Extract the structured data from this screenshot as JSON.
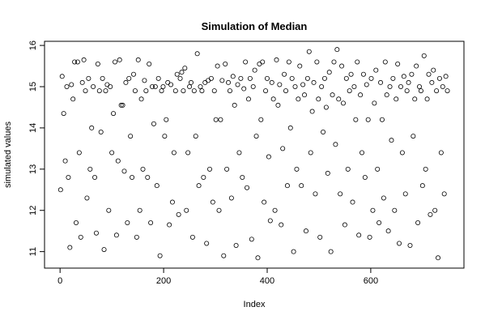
{
  "chart_data": {
    "type": "scatter",
    "title": "Simulation of Median",
    "x_label": "Index",
    "y_label": "simulated values",
    "color": "#000000",
    "xlim": [
      -30,
      780
    ],
    "xticks": [
      0,
      200,
      400,
      600
    ],
    "ylim": [
      10.6,
      16.1
    ],
    "yticks": [
      11,
      12,
      13,
      14,
      15,
      16
    ],
    "x": [
      1,
      4,
      7,
      10,
      13,
      16,
      19,
      22,
      25,
      28,
      31,
      34,
      37,
      40,
      43,
      46,
      49,
      52,
      55,
      58,
      61,
      64,
      67,
      70,
      73,
      76,
      79,
      82,
      85,
      88,
      91,
      94,
      97,
      100,
      103,
      106,
      109,
      112,
      115,
      118,
      121,
      124,
      127,
      130,
      133,
      136,
      139,
      142,
      145,
      148,
      151,
      154,
      157,
      160,
      163,
      166,
      169,
      172,
      175,
      178,
      181,
      184,
      187,
      190,
      193,
      196,
      199,
      202,
      205,
      208,
      211,
      214,
      217,
      220,
      223,
      226,
      229,
      232,
      235,
      238,
      241,
      244,
      247,
      250,
      253,
      256,
      259,
      262,
      265,
      268,
      271,
      274,
      277,
      280,
      283,
      286,
      289,
      292,
      295,
      298,
      301,
      304,
      307,
      310,
      313,
      316,
      319,
      322,
      325,
      328,
      331,
      334,
      337,
      340,
      343,
      346,
      349,
      352,
      355,
      358,
      361,
      364,
      367,
      370,
      373,
      376,
      379,
      382,
      385,
      388,
      391,
      394,
      397,
      400,
      403,
      406,
      409,
      412,
      415,
      418,
      421,
      424,
      427,
      430,
      433,
      436,
      439,
      442,
      445,
      448,
      451,
      454,
      457,
      460,
      463,
      466,
      469,
      472,
      475,
      478,
      481,
      484,
      487,
      490,
      493,
      496,
      499,
      502,
      505,
      508,
      511,
      514,
      517,
      520,
      523,
      526,
      529,
      532,
      535,
      538,
      541,
      544,
      547,
      550,
      553,
      556,
      559,
      562,
      565,
      568,
      571,
      574,
      577,
      580,
      583,
      586,
      589,
      592,
      595,
      598,
      601,
      604,
      607,
      610,
      613,
      616,
      619,
      622,
      625,
      628,
      631,
      634,
      637,
      640,
      643,
      646,
      649,
      652,
      655,
      658,
      661,
      664,
      667,
      670,
      673,
      676,
      679,
      682,
      685,
      688,
      691,
      694,
      697,
      700,
      703,
      706,
      709,
      712,
      715,
      718,
      721,
      724,
      727,
      730,
      733,
      736,
      739,
      742,
      745,
      748
    ],
    "values": [
      12.5,
      15.25,
      14.35,
      13.2,
      15.0,
      12.8,
      11.1,
      15.05,
      14.7,
      15.6,
      11.7,
      15.6,
      13.4,
      11.35,
      15.1,
      15.65,
      14.9,
      12.3,
      15.2,
      13.0,
      14.0,
      15.0,
      12.8,
      11.45,
      15.55,
      14.9,
      13.9,
      15.2,
      11.05,
      14.9,
      15.05,
      12.0,
      15.0,
      13.4,
      14.35,
      15.6,
      11.4,
      13.2,
      15.65,
      14.55,
      14.55,
      12.95,
      15.1,
      11.7,
      15.2,
      13.8,
      12.8,
      15.3,
      14.9,
      11.35,
      15.65,
      12.0,
      14.7,
      13.0,
      15.15,
      14.9,
      12.8,
      15.55,
      11.7,
      15.0,
      14.1,
      15.0,
      12.6,
      15.2,
      10.9,
      14.9,
      15.0,
      13.8,
      14.2,
      15.1,
      11.65,
      15.05,
      12.2,
      13.4,
      14.9,
      15.3,
      11.9,
      15.2,
      15.35,
      14.9,
      15.45,
      12.0,
      13.4,
      15.0,
      15.1,
      11.35,
      14.9,
      13.8,
      15.8,
      12.6,
      15.0,
      14.9,
      12.8,
      15.1,
      11.2,
      15.15,
      13.0,
      15.2,
      12.2,
      14.9,
      14.2,
      15.5,
      12.0,
      14.2,
      15.15,
      10.9,
      15.55,
      13.0,
      15.1,
      14.9,
      12.3,
      15.25,
      14.55,
      11.15,
      15.05,
      13.4,
      15.2,
      12.8,
      14.95,
      15.6,
      12.55,
      14.7,
      15.2,
      11.3,
      15.0,
      15.4,
      13.8,
      10.85,
      15.55,
      14.2,
      15.6,
      12.2,
      14.9,
      15.2,
      13.3,
      11.75,
      15.1,
      14.7,
      12.0,
      15.65,
      14.55,
      15.05,
      11.65,
      13.5,
      15.3,
      14.9,
      12.6,
      15.6,
      14.0,
      15.2,
      11.0,
      15.0,
      13.0,
      14.7,
      15.5,
      12.6,
      15.05,
      14.8,
      11.5,
      15.2,
      15.85,
      13.4,
      14.4,
      15.1,
      12.4,
      15.6,
      14.7,
      11.35,
      15.0,
      13.9,
      15.2,
      14.5,
      12.9,
      15.35,
      11.0,
      14.8,
      15.6,
      13.6,
      15.9,
      14.7,
      12.4,
      15.5,
      14.6,
      11.65,
      15.2,
      13.0,
      14.9,
      15.3,
      12.2,
      15.0,
      14.2,
      15.6,
      11.4,
      14.8,
      13.4,
      15.3,
      12.8,
      15.05,
      14.2,
      11.35,
      15.2,
      12.0,
      14.6,
      15.4,
      13.0,
      11.7,
      15.1,
      14.2,
      12.3,
      15.6,
      14.8,
      11.5,
      15.0,
      13.7,
      15.2,
      12.0,
      14.7,
      15.55,
      11.2,
      15.0,
      13.4,
      15.25,
      12.4,
      14.9,
      15.1,
      11.15,
      15.3,
      13.8,
      14.7,
      15.5,
      11.7,
      15.0,
      14.9,
      12.6,
      15.75,
      13.0,
      14.7,
      15.3,
      11.9,
      15.1,
      15.4,
      12.0,
      14.9,
      10.85,
      15.2,
      13.4,
      15.0,
      12.4,
      15.25,
      14.9
    ]
  }
}
